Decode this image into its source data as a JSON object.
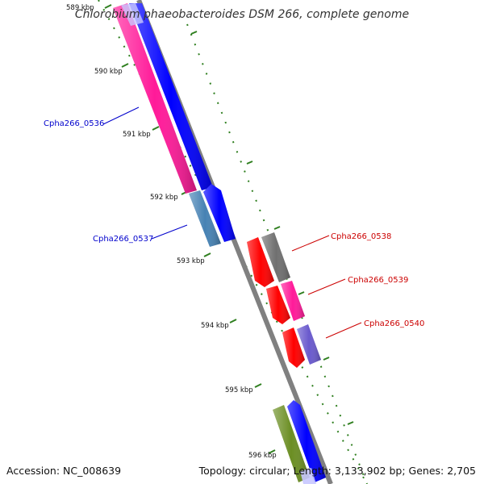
{
  "title": "Chlorobium phaeobacteroides DSM 266, complete genome",
  "footer": {
    "accession": "Accession: NC_008639",
    "summary": "Topology: circular; Length: 3,133,902 bp; Genes: 2,705"
  },
  "ticks": [
    "589 kbp",
    "590 kbp",
    "591 kbp",
    "592 kbp",
    "593 kbp",
    "594 kbp",
    "595 kbp",
    "596 kbp"
  ],
  "gene_labels": [
    {
      "text": "Cpha266_0536",
      "color": "#0000cc"
    },
    {
      "text": "Cpha266_0537",
      "color": "#0000cc"
    },
    {
      "text": "Cpha266_0538",
      "color": "#cc0000"
    },
    {
      "text": "Cpha266_0539",
      "color": "#cc0000"
    },
    {
      "text": "Cpha266_0540",
      "color": "#cc0000"
    }
  ],
  "colors": {
    "backbone": "#808080",
    "tick_green": "#2f7f1f",
    "pink": "#ff1a99",
    "blue": "#0000ff",
    "steelblue": "#4682b4",
    "red": "#ff0000",
    "gray_gene": "#707070",
    "purple": "#6a5acd",
    "olive": "#6b8e23",
    "lavender": "#c8c8ff"
  }
}
